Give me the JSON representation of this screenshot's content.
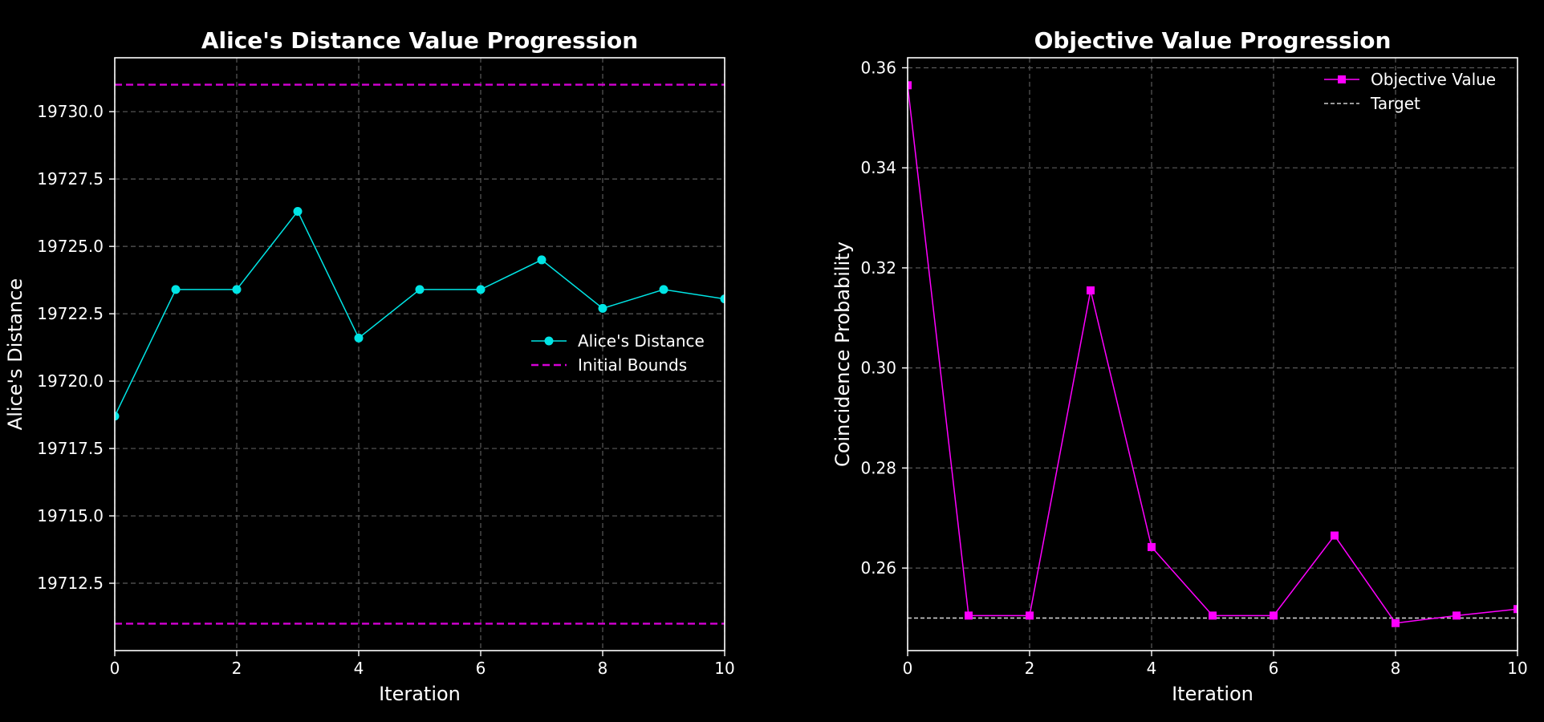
{
  "chart_data": [
    {
      "type": "line",
      "title": "Alice's Distance Value Progression",
      "xlabel": "Iteration",
      "ylabel": "Alice's Distance",
      "xlim": [
        0,
        10
      ],
      "ylim": [
        19710.0,
        19732.0
      ],
      "xticks": [
        0,
        2,
        4,
        6,
        8,
        10
      ],
      "xtick_labels": [
        "0",
        "2",
        "4",
        "6",
        "8",
        "10"
      ],
      "yticks": [
        19712.5,
        19715.0,
        19717.5,
        19720.0,
        19722.5,
        19725.0,
        19727.5,
        19730.0
      ],
      "ytick_labels": [
        "19712.5",
        "19715.0",
        "19717.5",
        "19720.0",
        "19722.5",
        "19725.0",
        "19727.5",
        "19730.0"
      ],
      "grid": true,
      "legend_position": "center-right",
      "series": [
        {
          "name": "Alice's Distance",
          "style": "line-marker-circle",
          "color": "#00e5e5",
          "x": [
            0,
            1,
            2,
            3,
            4,
            5,
            6,
            7,
            8,
            9,
            10
          ],
          "y": [
            19718.7,
            19723.4,
            19723.4,
            19726.3,
            19721.6,
            19723.4,
            19723.4,
            19724.5,
            19722.7,
            19723.4,
            19723.05
          ]
        }
      ],
      "hlines": [
        {
          "name": "Initial Bounds",
          "style": "dashed",
          "color": "#d400d4",
          "values": [
            19711.0,
            19731.0
          ]
        }
      ]
    },
    {
      "type": "line",
      "title": "Objective Value Progression",
      "xlabel": "Iteration",
      "ylabel": "Coincidence Probability",
      "xlim": [
        0,
        10
      ],
      "ylim": [
        0.2435,
        0.362
      ],
      "xticks": [
        0,
        2,
        4,
        6,
        8,
        10
      ],
      "xtick_labels": [
        "0",
        "2",
        "4",
        "6",
        "8",
        "10"
      ],
      "yticks": [
        0.26,
        0.28,
        0.3,
        0.32,
        0.34,
        0.36
      ],
      "ytick_labels": [
        "0.26",
        "0.28",
        "0.30",
        "0.32",
        "0.34",
        "0.36"
      ],
      "grid": true,
      "legend_position": "top-right",
      "series": [
        {
          "name": "Objective Value",
          "style": "line-marker-square",
          "color": "#ff00ff",
          "x": [
            0,
            1,
            2,
            3,
            4,
            5,
            6,
            7,
            8,
            9,
            10
          ],
          "y": [
            0.3565,
            0.2505,
            0.2505,
            0.3155,
            0.2642,
            0.2505,
            0.2505,
            0.2665,
            0.249,
            0.2505,
            0.2518
          ]
        }
      ],
      "hlines": [
        {
          "name": "Target",
          "style": "dashed-thin",
          "color": "#cccccc",
          "values": [
            0.25
          ]
        }
      ]
    }
  ]
}
